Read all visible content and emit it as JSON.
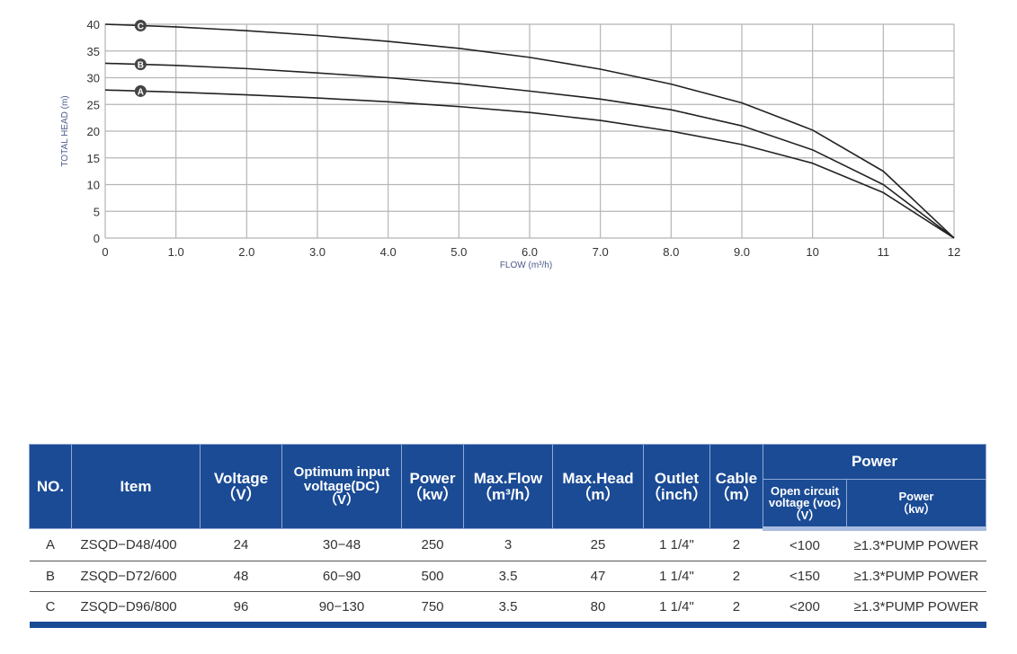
{
  "chart_data": {
    "type": "line",
    "xlabel": "FLOW (m³/h)",
    "ylabel": "TOTAL  HEAD (m)",
    "xlim": [
      0,
      12
    ],
    "ylim": [
      0,
      40
    ],
    "grid": true,
    "xticks": [
      0,
      1,
      2,
      3,
      4,
      5,
      6,
      7,
      8,
      9,
      10,
      11,
      12
    ],
    "xtick_labels": [
      "0",
      "1.0",
      "2.0",
      "3.0",
      "4.0",
      "5.0",
      "6.0",
      "7.0",
      "8.0",
      "9.0",
      "10",
      "11",
      "12"
    ],
    "yticks": [
      0,
      5,
      10,
      15,
      20,
      25,
      30,
      35,
      40
    ],
    "series": [
      {
        "name": "A",
        "x": [
          0,
          1,
          2,
          3,
          4,
          5,
          6,
          7,
          8,
          9,
          10,
          11,
          12
        ],
        "y": [
          27.7,
          27.3,
          26.8,
          26.2,
          25.5,
          24.6,
          23.5,
          22,
          20,
          17.5,
          14,
          8.5,
          0
        ]
      },
      {
        "name": "B",
        "x": [
          0,
          1,
          2,
          3,
          4,
          5,
          6,
          7,
          8,
          9,
          10,
          11,
          12
        ],
        "y": [
          32.7,
          32.3,
          31.7,
          30.9,
          30,
          28.9,
          27.5,
          26,
          24,
          21,
          16.5,
          10,
          0
        ]
      },
      {
        "name": "C",
        "x": [
          0,
          1,
          2,
          3,
          4,
          5,
          6,
          7,
          8,
          9,
          10,
          11,
          12
        ],
        "y": [
          40,
          39.5,
          38.8,
          37.9,
          36.8,
          35.5,
          33.8,
          31.6,
          28.8,
          25.3,
          20.2,
          12.5,
          0
        ]
      }
    ],
    "marker_x": 0.5
  },
  "table": {
    "headers": {
      "no": "NO.",
      "item": "Item",
      "voltage": "Voltage",
      "voltage_u": "（V）",
      "opt": "Optimum input voltage(DC)",
      "opt_u": "（V）",
      "power": "Power",
      "power_u": "（kw）",
      "flow": "Max.Flow",
      "flow_u": "（m³/h）",
      "head": "Max.Head",
      "head_u": "（m）",
      "outlet": "Outlet",
      "outlet_u": "（inch）",
      "cable": "Cable",
      "cable_u": "（m）",
      "group": "Power",
      "voc": "Open circuit voltage (voc)",
      "voc_u": "（V）",
      "pw": "Power",
      "pw_u": "（kw）"
    },
    "rows": [
      [
        "A",
        "ZSQD−D48/400",
        "24",
        "30−48",
        "250",
        "3",
        "25",
        "1 1/4\"",
        "2",
        "<100",
        "≥1.3*PUMP POWER"
      ],
      [
        "B",
        "ZSQD−D72/600",
        "48",
        "60−90",
        "500",
        "3.5",
        "47",
        "1 1/4\"",
        "2",
        "<150",
        "≥1.3*PUMP POWER"
      ],
      [
        "C",
        "ZSQD−D96/800",
        "96",
        "90−130",
        "750",
        "3.5",
        "80",
        "1 1/4\"",
        "2",
        "<200",
        "≥1.3*PUMP POWER"
      ]
    ]
  }
}
